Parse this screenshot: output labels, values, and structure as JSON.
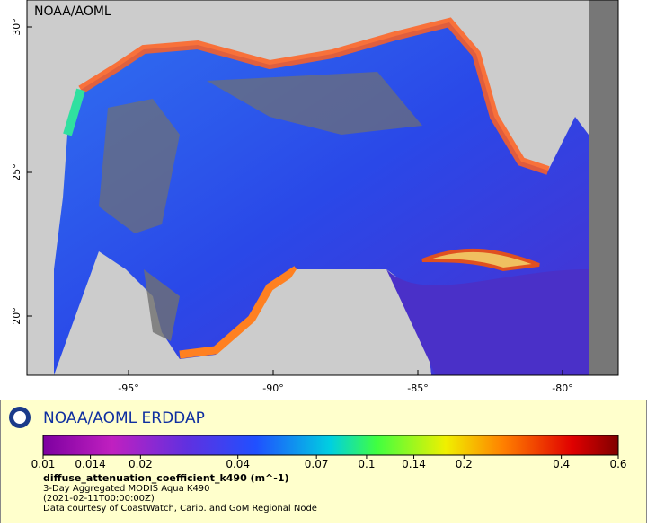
{
  "map": {
    "watermark": "NOAA/AOML",
    "lat_labels": [
      "30°",
      "25°",
      "20°"
    ],
    "lon_labels": [
      "-95°",
      "-90°",
      "-85°",
      "-80°"
    ]
  },
  "legend": {
    "title": "NOAA/AOML ERDDAP",
    "colorbar_ticks": [
      0.01,
      0.014,
      0.02,
      0.04,
      0.07,
      0.1,
      0.14,
      0.2,
      0.4,
      0.6
    ],
    "colorbar_log": true,
    "variable": "diffuse_attenuation_coefficient_k490 (m^-1)",
    "lines": [
      "3-Day Aggregated MODIS Aqua K490",
      "(2021-02-11T00:00:00Z)",
      "Data courtesy of CoastWatch, Carib. and GoM Regional Node"
    ]
  }
}
